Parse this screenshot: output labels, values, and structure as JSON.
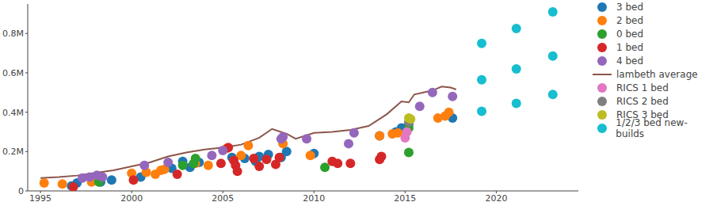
{
  "chart_data": {
    "type": "scatter",
    "xlim": [
      1994.3,
      2024.5
    ],
    "xticks": [
      1995,
      2000,
      2005,
      2010,
      2015,
      2020
    ],
    "ylim": [
      0,
      950000
    ],
    "yticks": [
      0,
      {
        "value": 200000,
        "label": "0.2M"
      },
      {
        "value": 400000,
        "label": "0.4M"
      },
      {
        "value": 600000,
        "label": "0.6M"
      },
      {
        "value": 800000,
        "label": "0.8M"
      }
    ],
    "grid": false,
    "legend": "right",
    "series": [
      {
        "name": "3 bed",
        "type": "scatter",
        "color": "#1f77b4",
        "x": [
          1996.7,
          1997.0,
          1998.3,
          1998.9,
          2000.5,
          2002.2,
          2002.8,
          2003.2,
          2003.7,
          2005.5,
          2006.2,
          2006.8,
          2007.0,
          2007.5,
          2008.2,
          2008.5,
          2010.0,
          2013.6,
          2014.5,
          2014.8,
          2015.2,
          2017.6
        ],
        "values": [
          25000,
          40000,
          45000,
          55000,
          70000,
          115000,
          150000,
          120000,
          145000,
          170000,
          165000,
          150000,
          175000,
          185000,
          170000,
          200000,
          190000,
          280000,
          300000,
          320000,
          340000,
          370000
        ]
      },
      {
        "name": "2 bed",
        "type": "scatter",
        "color": "#ff7f0e",
        "x": [
          1995.2,
          1996.2,
          1997.8,
          2000.0,
          2000.8,
          2001.3,
          2001.6,
          2001.8,
          2003.5,
          2004.2,
          2005.2,
          2006.0,
          2006.4,
          2008.3,
          2009.8,
          2013.6,
          2014.3,
          2014.6,
          2016.8,
          2017.2,
          2017.4
        ],
        "values": [
          40000,
          35000,
          45000,
          90000,
          95000,
          85000,
          105000,
          110000,
          140000,
          130000,
          215000,
          180000,
          230000,
          240000,
          180000,
          280000,
          290000,
          295000,
          370000,
          380000,
          400000
        ]
      },
      {
        "name": "0 bed",
        "type": "scatter",
        "color": "#2ca02c",
        "x": [
          1998.2,
          2002.8,
          2003.4,
          2003.5,
          2010.6,
          2015.2,
          2015.2
        ],
        "values": [
          45000,
          130000,
          140000,
          165000,
          120000,
          195000,
          320000
        ]
      },
      {
        "name": "1 bed",
        "type": "scatter",
        "color": "#d62728",
        "x": [
          1996.8,
          2000.1,
          2002.5,
          2004.9,
          2005.3,
          2005.6,
          2005.7,
          2005.8,
          2006.7,
          2007.0,
          2007.4,
          2007.9,
          2008.1,
          2011.0,
          2011.3,
          2012.0,
          2013.6,
          2013.7
        ],
        "values": [
          20000,
          55000,
          85000,
          140000,
          220000,
          155000,
          130000,
          100000,
          165000,
          125000,
          160000,
          135000,
          170000,
          150000,
          140000,
          140000,
          160000,
          175000
        ]
      },
      {
        "name": "4 bed",
        "type": "scatter",
        "color": "#9467bd",
        "x": [
          1997.3,
          1997.7,
          1998.1,
          1998.4,
          2000.7,
          2002.0,
          2004.4,
          2005.0,
          2008.2,
          2008.3,
          2009.6,
          2011.9,
          2012.2,
          2015.8,
          2016.5,
          2017.6
        ],
        "values": [
          65000,
          70000,
          80000,
          70000,
          130000,
          145000,
          180000,
          205000,
          265000,
          275000,
          265000,
          240000,
          295000,
          430000,
          500000,
          480000
        ]
      },
      {
        "name": "lambeth average",
        "type": "line",
        "color": "#8c564b",
        "x": [
          1995.0,
          1996.0,
          1997.0,
          1998.0,
          1999.0,
          2000.0,
          2001.0,
          2002.0,
          2003.0,
          2004.0,
          2005.0,
          2006.0,
          2007.0,
          2007.7,
          2008.5,
          2009.0,
          2010.0,
          2011.0,
          2012.0,
          2013.0,
          2014.0,
          2014.8,
          2015.2,
          2015.5,
          2016.0,
          2016.5,
          2017.0,
          2017.5,
          2017.8
        ],
        "values": [
          65000,
          70000,
          78000,
          92000,
          105000,
          125000,
          145000,
          175000,
          195000,
          210000,
          220000,
          235000,
          270000,
          315000,
          290000,
          265000,
          295000,
          300000,
          310000,
          330000,
          390000,
          455000,
          450000,
          490000,
          500000,
          510000,
          530000,
          525000,
          515000
        ]
      },
      {
        "name": "RICS 1 bed",
        "type": "scatter",
        "color": "#e377c2",
        "x": [
          2015.0,
          2015.1
        ],
        "values": [
          270000,
          300000
        ]
      },
      {
        "name": "RICS 2 bed",
        "type": "scatter",
        "color": "#7f7f7f",
        "x": [
          2015.2
        ],
        "values": [
          350000
        ]
      },
      {
        "name": "RICS 3 bed",
        "type": "scatter",
        "color": "#bcbd22",
        "x": [
          2015.2,
          2015.3
        ],
        "values": [
          370000,
          365000
        ]
      },
      {
        "name": "1/2/3 bed new-builds",
        "type": "scatter",
        "color": "#17becf",
        "x": [
          2019.2,
          2019.2,
          2019.2,
          2021.1,
          2021.1,
          2021.1,
          2023.1,
          2023.1,
          2023.1
        ],
        "values": [
          405000,
          565000,
          750000,
          445000,
          620000,
          825000,
          490000,
          685000,
          910000
        ]
      }
    ]
  }
}
